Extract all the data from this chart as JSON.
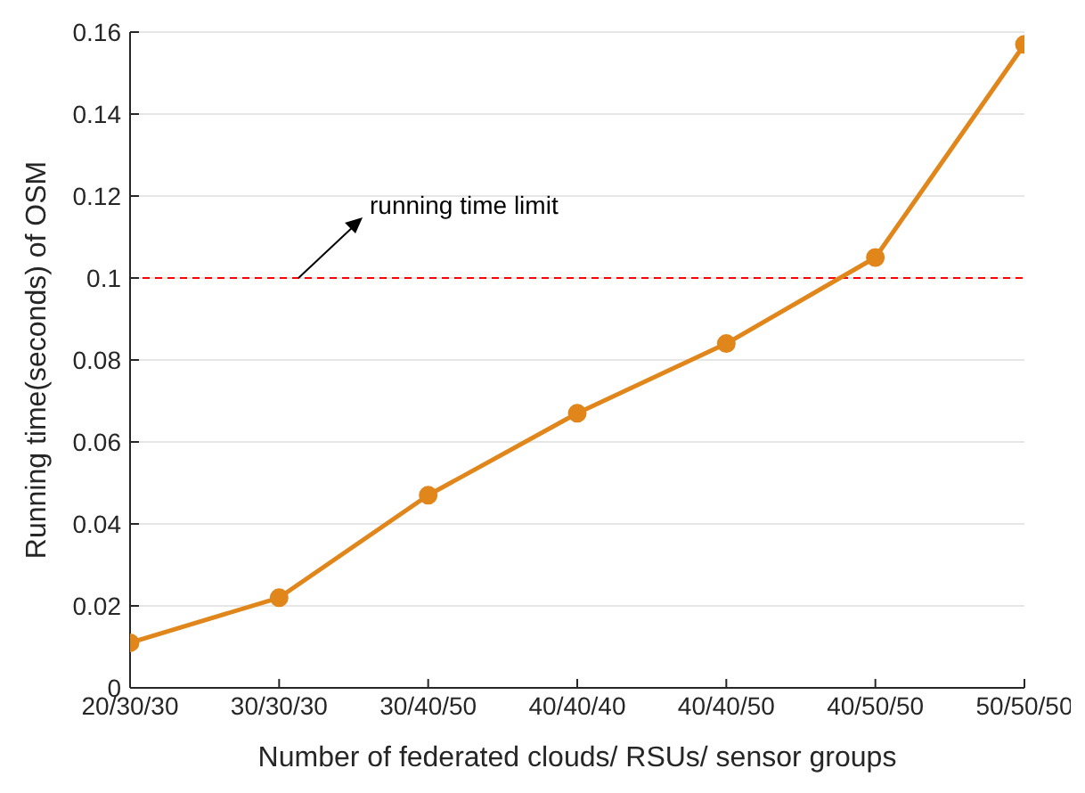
{
  "chart_data": {
    "type": "line",
    "xlabel": "Number of federated clouds/ RSUs/ sensor groups",
    "ylabel": "Running time(seconds) of OSM",
    "categories": [
      "20/30/30",
      "30/30/30",
      "30/40/50",
      "40/40/40",
      "40/40/50",
      "40/50/50",
      "50/50/50"
    ],
    "series": [
      {
        "color": "#e0861a",
        "values": [
          0.011,
          0.022,
          0.047,
          0.067,
          0.084,
          0.105,
          0.157
        ]
      }
    ],
    "ylim": [
      0,
      0.16
    ],
    "yticks": [
      0,
      0.02,
      0.04,
      0.06,
      0.08,
      0.1,
      0.12,
      0.14,
      0.16
    ],
    "grid": "y",
    "marker": "circle",
    "line_style": "solid",
    "ref_lines": [
      {
        "axis": "y",
        "value": 0.1,
        "color": "#ff0000",
        "line_style": "dashed"
      }
    ],
    "annotations": [
      "running time limit"
    ]
  }
}
